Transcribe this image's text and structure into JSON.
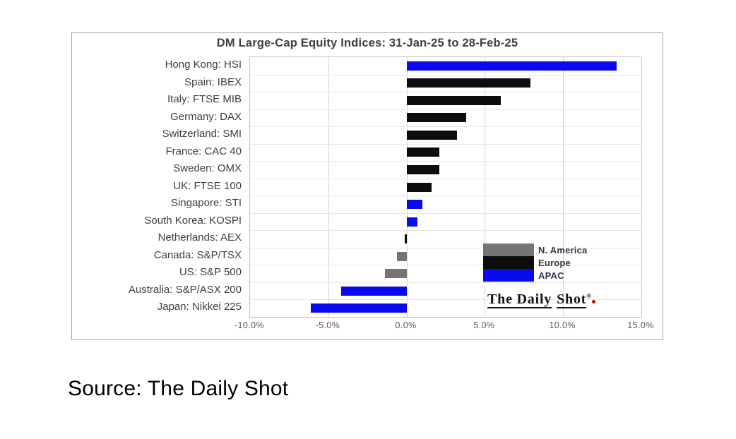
{
  "source_caption": "Source: The Daily Shot",
  "chart_data": {
    "type": "bar",
    "orientation": "horizontal",
    "title": "DM Large-Cap Equity Indices: 31-Jan-25 to 28-Feb-25",
    "xlabel": "",
    "ylabel": "",
    "x_unit": "%",
    "xlim": [
      -10,
      15
    ],
    "grid": true,
    "x_ticks": [
      {
        "value": -10,
        "label": "-10.0%"
      },
      {
        "value": -5,
        "label": "-5.0%"
      },
      {
        "value": 0,
        "label": "0.0%"
      },
      {
        "value": 5,
        "label": "5.0%"
      },
      {
        "value": 10,
        "label": "10.0%"
      },
      {
        "value": 15,
        "label": "15.0%"
      }
    ],
    "categories": [
      "Hong Kong: HSI",
      "Spain: IBEX",
      "Italy: FTSE MIB",
      "Germany: DAX",
      "Switzerland: SMI",
      "France: CAC 40",
      "Sweden: OMX",
      "UK: FTSE 100",
      "Singapore: STI",
      "South Korea: KOSPI",
      "Netherlands: AEX",
      "Canada: S&P/TSX",
      "US: S&P 500",
      "Australia: S&P/ASX 200",
      "Japan: Nikkei 225"
    ],
    "values": [
      13.4,
      7.9,
      6.0,
      3.8,
      3.2,
      2.1,
      2.1,
      1.6,
      1.0,
      0.7,
      -0.1,
      -0.6,
      -1.4,
      -4.2,
      -6.1
    ],
    "regions": [
      "APAC",
      "Europe",
      "Europe",
      "Europe",
      "Europe",
      "Europe",
      "Europe",
      "Europe",
      "APAC",
      "APAC",
      "Europe",
      "N. America",
      "N. America",
      "APAC",
      "APAC"
    ],
    "legend": {
      "position": "inside-bottom-right",
      "entries": [
        {
          "label": "N. America",
          "color": "#757575"
        },
        {
          "label": "Europe",
          "color": "#0d0d0d"
        },
        {
          "label": "APAC",
          "color": "#0a0af0"
        }
      ]
    },
    "watermark": {
      "word1": "The Daily",
      "word2": "Shot",
      "registered": "®"
    }
  },
  "colors": {
    "panel_border": "#a3a3a3",
    "plot_border": "#c2c2c2",
    "gridline": "#d4d4d4",
    "row_separator": "#e6e6e6",
    "title_text": "#404040",
    "category_text": "#3f3f3f",
    "tick_text": "#595959",
    "bar_apac": "#0a0af0",
    "bar_europe": "#0d0d0d",
    "bar_namerica": "#757575",
    "logo_dot": "#cc0000"
  }
}
